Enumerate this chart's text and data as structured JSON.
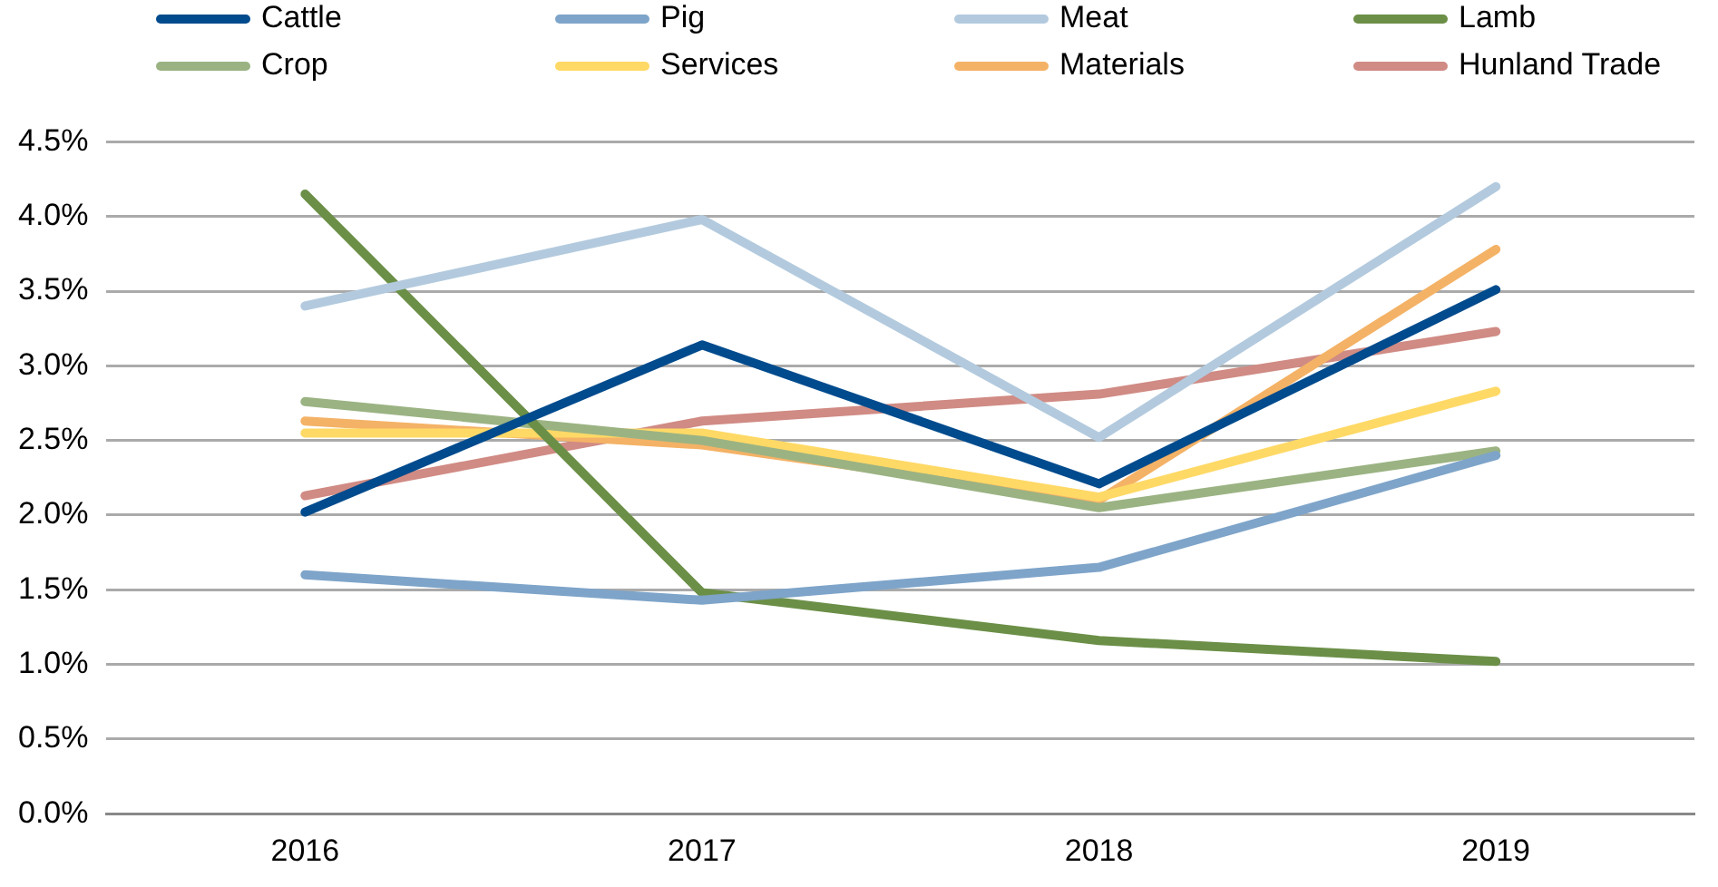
{
  "chart_data": {
    "type": "line",
    "categories": [
      "2016",
      "2017",
      "2018",
      "2019"
    ],
    "series": [
      {
        "name": "Cattle",
        "color": "#004b8d",
        "values": [
          2.02,
          3.14,
          2.21,
          3.51
        ]
      },
      {
        "name": "Pig",
        "color": "#7ea4c9",
        "values": [
          1.6,
          1.43,
          1.65,
          2.4
        ]
      },
      {
        "name": "Meat",
        "color": "#b3cade",
        "values": [
          3.4,
          3.98,
          2.52,
          4.2
        ]
      },
      {
        "name": "Lamb",
        "color": "#6b8f47",
        "values": [
          4.15,
          1.48,
          1.16,
          1.02
        ]
      },
      {
        "name": "Crop",
        "color": "#9bb383",
        "values": [
          2.76,
          2.5,
          2.05,
          2.43
        ]
      },
      {
        "name": "Services",
        "color": "#ffd966",
        "values": [
          2.55,
          2.55,
          2.12,
          2.83
        ]
      },
      {
        "name": "Materials",
        "color": "#f4b266",
        "values": [
          2.63,
          2.47,
          2.1,
          3.78
        ]
      },
      {
        "name": "Hunland Trade",
        "color": "#d08b84",
        "values": [
          2.13,
          2.63,
          2.81,
          3.23
        ]
      }
    ],
    "ylim": [
      0,
      4.5
    ],
    "yticks": [
      {
        "value": 0,
        "label": "0.0%"
      },
      {
        "value": 0.5,
        "label": "0.5%"
      },
      {
        "value": 1,
        "label": "1.0%"
      },
      {
        "value": 1.5,
        "label": "1.5%"
      },
      {
        "value": 2,
        "label": "2.0%"
      },
      {
        "value": 2.5,
        "label": "2.5%"
      },
      {
        "value": 3,
        "label": "3.0%"
      },
      {
        "value": 3.5,
        "label": "3.5%"
      },
      {
        "value": 4,
        "label": "4.0%"
      },
      {
        "value": 4.5,
        "label": "4.5%"
      }
    ],
    "grid": "y",
    "legend": "top",
    "marker": "none",
    "line_style": "solid"
  }
}
